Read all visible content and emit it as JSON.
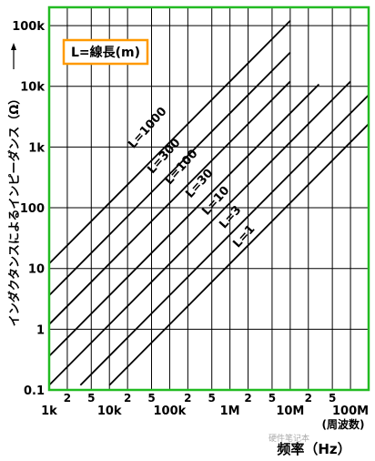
{
  "chart_data": {
    "type": "line",
    "xlabel": "频率（Hz）",
    "x_unit_note": "(周波数)",
    "ylabel": "インダクタンスによるインピーダンス（Ω）",
    "x_scale": "log",
    "y_scale": "log",
    "xlim": [
      1000,
      200000000
    ],
    "ylim": [
      0.1,
      200000
    ],
    "x_ticks": [
      "1k",
      "10k",
      "100k",
      "1M",
      "10M",
      "100M"
    ],
    "x_tick_values": [
      1000,
      10000,
      100000,
      1000000,
      10000000,
      100000000
    ],
    "x_minor_ticks": [
      "2",
      "5"
    ],
    "y_ticks": [
      "0.1",
      "1",
      "10",
      "100",
      "1k",
      "10k",
      "100k"
    ],
    "y_tick_values": [
      0.1,
      1,
      10,
      100,
      1000,
      10000,
      100000
    ],
    "grid": true,
    "legend_box": "L=線長(m)",
    "legend_position": "top-left",
    "colors": {
      "frame": "#22bb22",
      "grid": "#000000",
      "lines": "#000000",
      "legend_border": "#ff9900"
    },
    "series": [
      {
        "name": "L=1000",
        "points": [
          [
            1000,
            12
          ],
          [
            10000000,
            120000
          ]
        ]
      },
      {
        "name": "L=300",
        "points": [
          [
            1000,
            3.6
          ],
          [
            10000000,
            36000
          ]
        ]
      },
      {
        "name": "L=100",
        "points": [
          [
            1000,
            1.2
          ],
          [
            10000000,
            12000
          ]
        ]
      },
      {
        "name": "L=30",
        "points": [
          [
            1000,
            0.36
          ],
          [
            30000000,
            10800
          ]
        ]
      },
      {
        "name": "L=10",
        "points": [
          [
            1000,
            0.12
          ],
          [
            100000000,
            12000
          ]
        ]
      },
      {
        "name": "L=3",
        "points": [
          [
            3300,
            0.12
          ],
          [
            200000000,
            7200
          ]
        ]
      },
      {
        "name": "L=1",
        "points": [
          [
            10000,
            0.12
          ],
          [
            200000000,
            2400
          ]
        ]
      }
    ]
  },
  "watermark": "硬件笔记本"
}
